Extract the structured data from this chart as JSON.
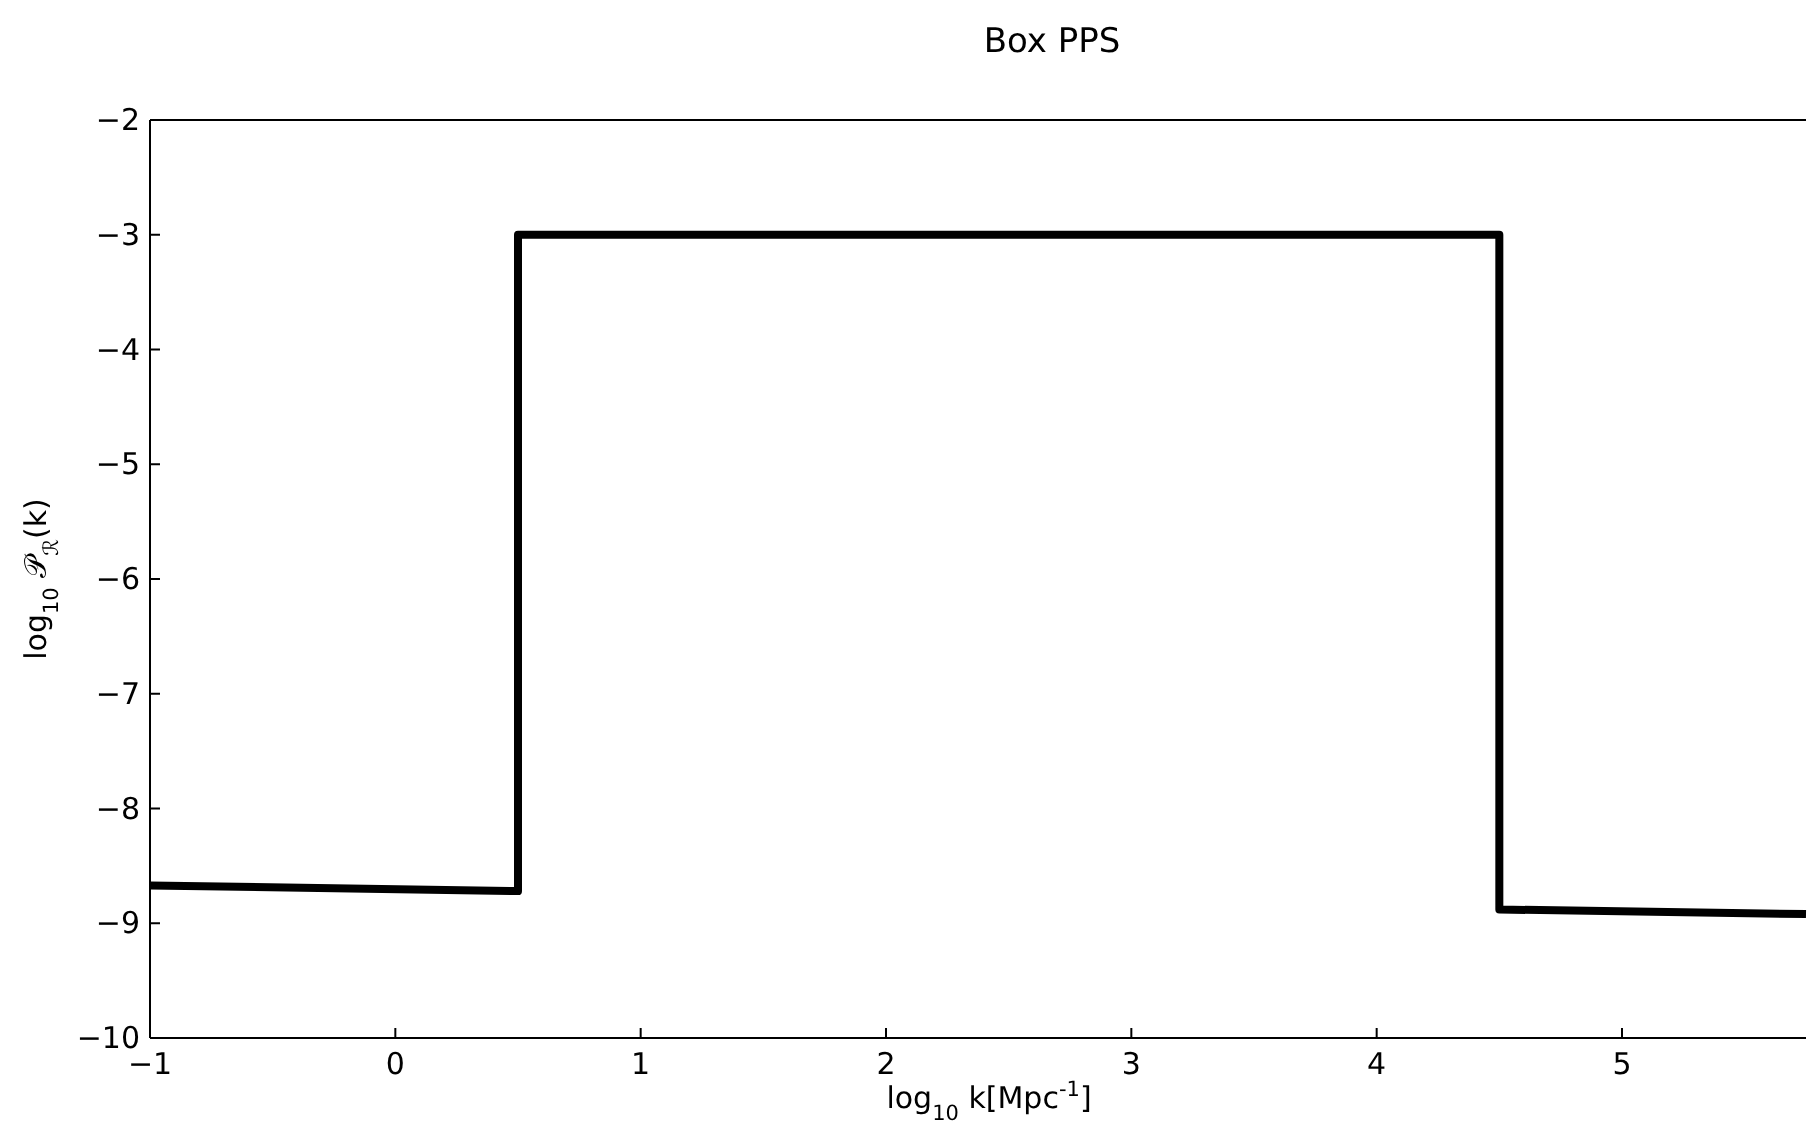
{
  "chart_data": {
    "type": "line",
    "title": "Box PPS",
    "xlabel": "log$_{10}$ k[Mpc$^{-1}$]",
    "ylabel": "log$_{10}$ 𝒫$_{ℛ}$(k)",
    "x": [
      -1,
      0.5,
      0.5,
      4.5,
      4.5,
      5.75
    ],
    "series": [
      {
        "color": "#000000",
        "values": [
          -8.67,
          -8.72,
          -3,
          -3,
          -8.88,
          -8.92
        ]
      }
    ],
    "xlim": [
      -1,
      5.75
    ],
    "ylim": [
      -10,
      -2
    ],
    "xticks": [
      {
        "value": -1,
        "label": "−1"
      },
      0,
      1,
      2,
      3,
      4,
      5
    ],
    "yticks": [
      {
        "value": -10,
        "label": "−10"
      },
      {
        "value": -9,
        "label": "−9"
      },
      {
        "value": -8,
        "label": "−8"
      },
      {
        "value": -7,
        "label": "−7"
      },
      {
        "value": -6,
        "label": "−6"
      },
      {
        "value": -5,
        "label": "−5"
      },
      {
        "value": -4,
        "label": "−4"
      },
      {
        "value": -3,
        "label": "−3"
      },
      {
        "value": -2,
        "label": "−2"
      }
    ],
    "grid": false,
    "line_style": "solid"
  }
}
